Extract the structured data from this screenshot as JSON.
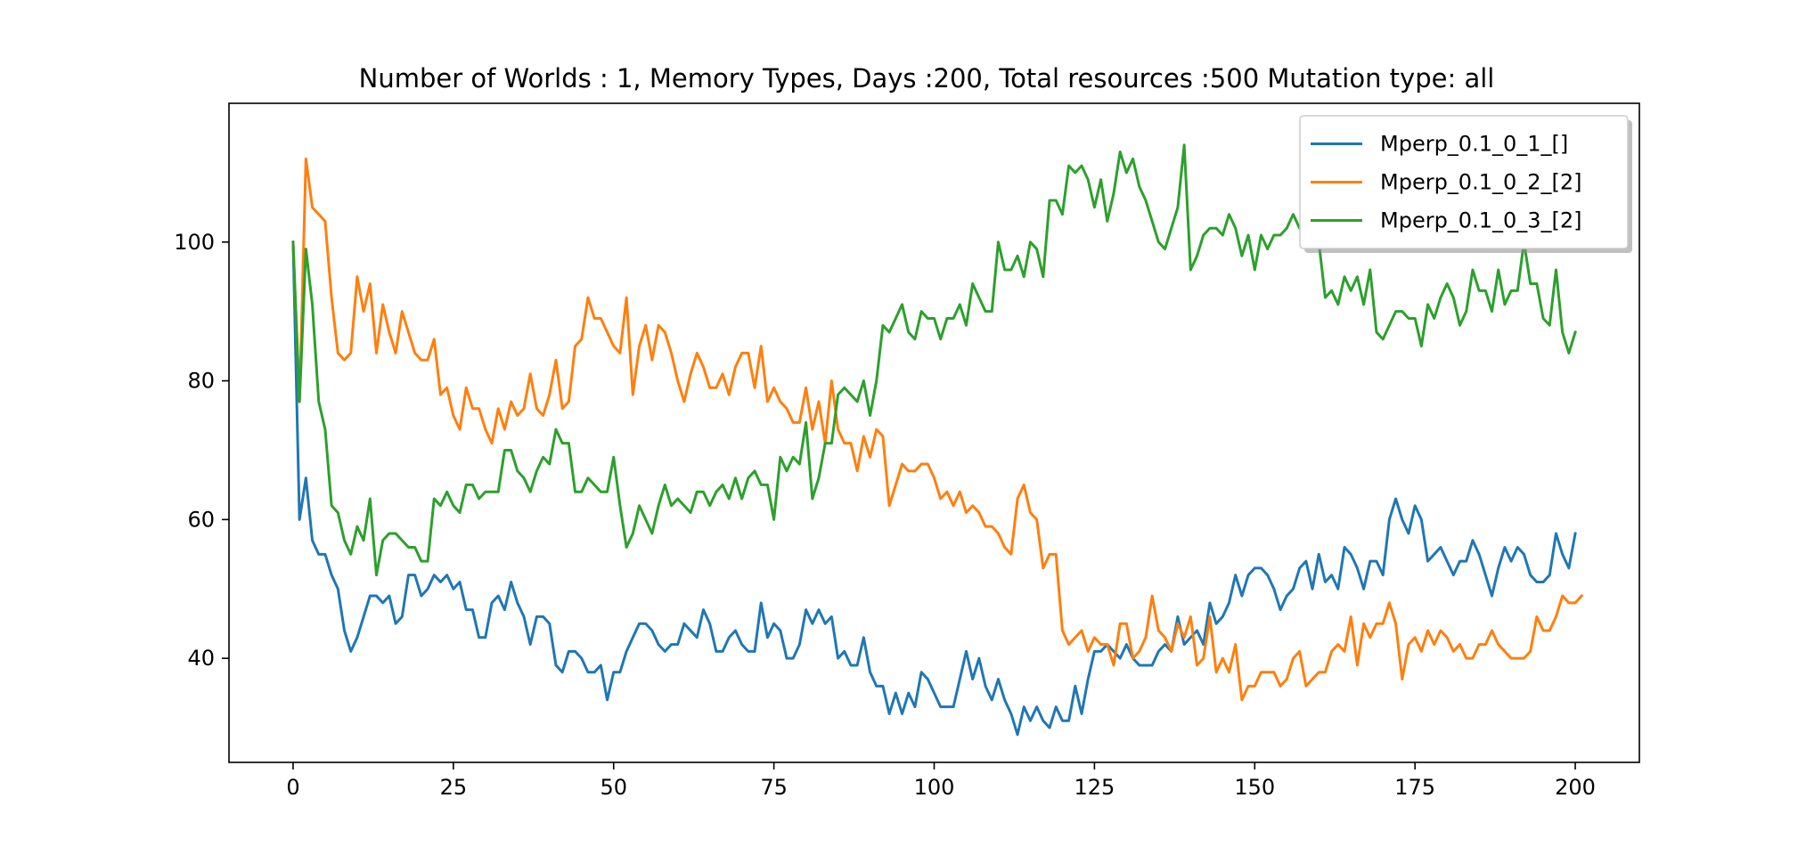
{
  "chart_data": {
    "type": "line",
    "title": "Number of Worlds : 1,  Memory Types,  Days :200, Total resources :500 Mutation type: all",
    "xlabel": "",
    "ylabel": "",
    "xlim": [
      -10,
      210
    ],
    "ylim": [
      25,
      120
    ],
    "xticks": [
      0,
      25,
      50,
      75,
      100,
      125,
      150,
      175,
      200
    ],
    "yticks": [
      40,
      60,
      80,
      100
    ],
    "grid": false,
    "legend": {
      "position": "top-right"
    },
    "x_start": 0,
    "x_step": 1,
    "series": [
      {
        "name": "Mperp_0.1_0_1_[]",
        "color": "#1f77b4",
        "values": [
          100,
          60,
          66,
          57,
          55,
          55,
          52,
          50,
          44,
          41,
          43,
          46,
          49,
          49,
          48,
          49,
          45,
          46,
          52,
          52,
          49,
          50,
          52,
          51,
          52,
          50,
          51,
          47,
          47,
          43,
          43,
          48,
          49,
          47,
          51,
          48,
          46,
          42,
          46,
          46,
          45,
          39,
          38,
          41,
          41,
          40,
          38,
          38,
          39,
          34,
          38,
          38,
          41,
          43,
          45,
          45,
          44,
          42,
          41,
          42,
          42,
          45,
          44,
          43,
          47,
          45,
          41,
          41,
          43,
          44,
          42,
          41,
          41,
          48,
          43,
          45,
          44,
          40,
          40,
          42,
          47,
          45,
          47,
          45,
          46,
          40,
          41,
          39,
          39,
          43,
          38,
          36,
          36,
          32,
          35,
          32,
          35,
          33,
          38,
          37,
          35,
          33,
          33,
          33,
          37,
          41,
          37,
          40,
          36,
          34,
          37,
          34,
          32,
          29,
          33,
          31,
          33,
          31,
          30,
          33,
          31,
          31,
          36,
          32,
          37,
          41,
          41,
          42,
          41,
          40,
          42,
          40,
          39,
          39,
          39,
          41,
          42,
          41,
          46,
          42,
          43,
          44,
          42,
          48,
          45,
          46,
          48,
          52,
          49,
          52,
          53,
          53,
          52,
          50,
          47,
          49,
          50,
          53,
          54,
          50,
          55,
          51,
          52,
          50,
          56,
          55,
          53,
          50,
          54,
          54,
          52,
          60,
          63,
          60,
          58,
          62,
          60,
          54,
          55,
          56,
          54,
          52,
          54,
          54,
          57,
          55,
          52,
          49,
          53,
          56,
          54,
          56,
          55,
          52,
          51,
          51,
          52,
          58,
          55,
          53,
          58
        ]
      },
      {
        "name": "Mperp_0.1_0_2_[2]",
        "color": "#ff7f0e",
        "values": [
          100,
          77,
          112,
          105,
          104,
          103,
          92,
          84,
          83,
          84,
          95,
          90,
          94,
          84,
          91,
          87,
          84,
          90,
          87,
          84,
          83,
          83,
          86,
          78,
          79,
          75,
          73,
          79,
          76,
          76,
          73,
          71,
          76,
          73,
          77,
          75,
          76,
          81,
          76,
          75,
          78,
          83,
          76,
          77,
          85,
          86,
          92,
          89,
          89,
          87,
          85,
          84,
          92,
          78,
          85,
          88,
          83,
          88,
          87,
          84,
          80,
          77,
          81,
          84,
          82,
          79,
          79,
          81,
          78,
          82,
          84,
          84,
          79,
          85,
          77,
          79,
          77,
          76,
          74,
          74,
          79,
          73,
          77,
          71,
          80,
          73,
          71,
          71,
          67,
          72,
          69,
          73,
          72,
          62,
          65,
          68,
          67,
          67,
          68,
          68,
          66,
          63,
          64,
          62,
          64,
          61,
          62,
          61,
          59,
          59,
          58,
          56,
          55,
          63,
          65,
          61,
          60,
          53,
          55,
          55,
          44,
          42,
          43,
          44,
          41,
          43,
          42,
          42,
          39,
          45,
          45,
          40,
          41,
          43,
          49,
          44,
          43,
          41,
          45,
          43,
          46,
          39,
          40,
          46,
          38,
          40,
          38,
          42,
          34,
          36,
          36,
          38,
          38,
          38,
          36,
          37,
          40,
          41,
          36,
          37,
          38,
          38,
          41,
          42,
          41,
          46,
          39,
          45,
          43,
          45,
          45,
          48,
          45,
          37,
          42,
          43,
          41,
          44,
          42,
          44,
          43,
          41,
          42,
          40,
          40,
          42,
          42,
          44,
          42,
          41,
          40,
          40,
          40,
          41,
          46,
          44,
          44,
          46,
          49,
          48,
          48,
          49
        ]
      },
      {
        "name": "Mperp_0.1_0_3_[2]",
        "color": "#2ca02c",
        "values": [
          100,
          77,
          99,
          91,
          77,
          73,
          62,
          61,
          57,
          55,
          59,
          57,
          63,
          52,
          57,
          58,
          58,
          57,
          56,
          56,
          54,
          54,
          63,
          62,
          64,
          62,
          61,
          65,
          65,
          63,
          64,
          64,
          64,
          70,
          70,
          67,
          66,
          64,
          67,
          69,
          68,
          73,
          71,
          71,
          64,
          64,
          66,
          65,
          64,
          64,
          69,
          62,
          56,
          58,
          62,
          60,
          58,
          62,
          65,
          62,
          63,
          62,
          61,
          64,
          64,
          62,
          64,
          65,
          63,
          66,
          63,
          66,
          67,
          65,
          65,
          60,
          69,
          67,
          69,
          68,
          74,
          63,
          66,
          71,
          71,
          78,
          79,
          78,
          77,
          80,
          75,
          80,
          88,
          87,
          89,
          91,
          87,
          86,
          90,
          89,
          89,
          86,
          89,
          89,
          91,
          88,
          94,
          92,
          90,
          90,
          100,
          96,
          96,
          98,
          95,
          100,
          99,
          95,
          106,
          106,
          104,
          111,
          110,
          111,
          109,
          105,
          109,
          103,
          107,
          113,
          110,
          112,
          108,
          106,
          103,
          100,
          99,
          102,
          105,
          114,
          96,
          98,
          101,
          102,
          102,
          101,
          104,
          102,
          98,
          101,
          96,
          101,
          99,
          101,
          101,
          102,
          104,
          102,
          101,
          101,
          100,
          92,
          93,
          91,
          95,
          93,
          95,
          91,
          96,
          87,
          86,
          88,
          90,
          90,
          89,
          89,
          85,
          91,
          89,
          92,
          94,
          92,
          88,
          90,
          96,
          93,
          93,
          90,
          96,
          91,
          93,
          93,
          100,
          94,
          94,
          89,
          88,
          96,
          87,
          84,
          87
        ]
      }
    ]
  }
}
